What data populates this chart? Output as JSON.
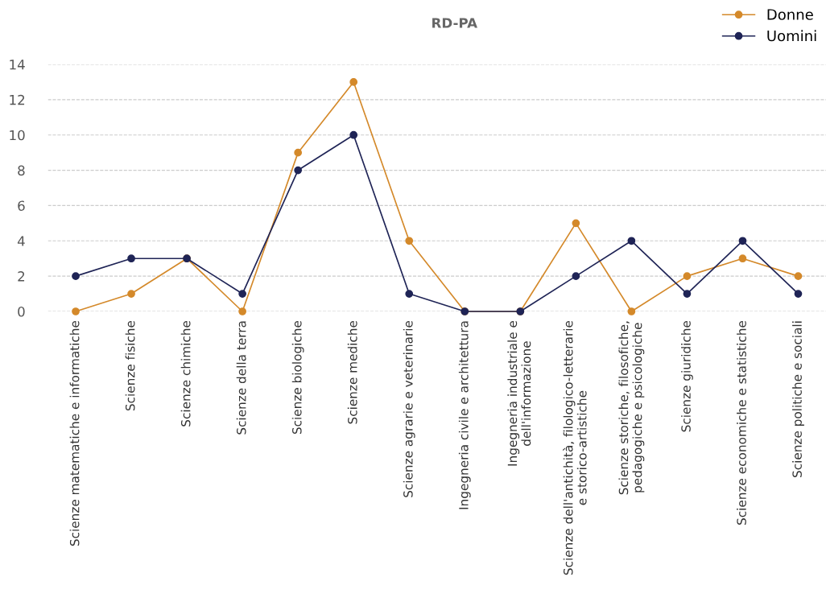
{
  "chart_data": {
    "type": "line",
    "title": "RD-PA",
    "categories": [
      "Scienze matematiche e informatiche",
      "Scienze fisiche",
      "Scienze chimiche",
      "Scienze della terra",
      "Scienze biologiche",
      "Scienze mediche",
      "Scienze agrarie e veterinarie",
      "Ingegneria civile e architettura",
      "Ingegneria industriale e\ndell'informazione",
      "Scienze dell'antichità, filologico-letterarie\ne storico-artistiche",
      "Scienze storiche, filosofiche,\npedagogiche e psicologiche",
      "Scienze giuridiche",
      "Scienze economiche e statistiche",
      "Scienze politiche e sociali"
    ],
    "series": [
      {
        "name": "Donne",
        "color": "#d4892a",
        "values": [
          0,
          1,
          3,
          0,
          9,
          13,
          4,
          0,
          0,
          5,
          0,
          2,
          3,
          2
        ]
      },
      {
        "name": "Uomini",
        "color": "#1f2456",
        "values": [
          2,
          3,
          3,
          1,
          8,
          10,
          1,
          0,
          0,
          2,
          4,
          1,
          4,
          1
        ]
      }
    ],
    "ylim": [
      0,
      14
    ],
    "yticks": [
      0,
      2,
      4,
      6,
      8,
      10,
      12,
      14
    ],
    "grid": "y",
    "legend": "top right",
    "marker": "circle",
    "line_style": "solid"
  }
}
